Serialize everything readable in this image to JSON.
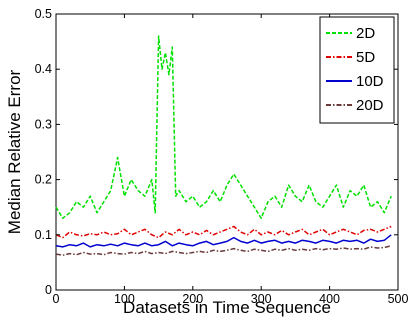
{
  "chart_data": {
    "type": "line",
    "xlabel": "Datasets in Time Sequence",
    "ylabel": "Median Relative Error",
    "xlim": [
      0,
      500
    ],
    "ylim": [
      0,
      0.5
    ],
    "xticks": [
      0,
      100,
      200,
      300,
      400,
      500
    ],
    "xtick_labels": [
      "0",
      "100",
      "200",
      "300",
      "400",
      "500"
    ],
    "yticks": [
      0,
      0.1,
      0.2,
      0.3,
      0.4,
      0.5
    ],
    "ytick_labels": [
      "0",
      "0.1",
      "0.2",
      "0.3",
      "0.4",
      "0.5"
    ],
    "grid": false,
    "legend_position": "top-right",
    "series": [
      {
        "name": "2D",
        "color": "#00e000",
        "dash": "dashed",
        "x": [
          0,
          10,
          20,
          30,
          40,
          50,
          60,
          70,
          80,
          90,
          100,
          110,
          120,
          130,
          140,
          145,
          150,
          155,
          160,
          165,
          170,
          175,
          180,
          190,
          200,
          210,
          220,
          230,
          240,
          250,
          260,
          270,
          280,
          290,
          300,
          310,
          320,
          330,
          340,
          350,
          360,
          370,
          380,
          390,
          400,
          410,
          420,
          430,
          440,
          450,
          460,
          470,
          480,
          490
        ],
        "y": [
          0.15,
          0.13,
          0.14,
          0.16,
          0.15,
          0.17,
          0.14,
          0.16,
          0.18,
          0.24,
          0.17,
          0.2,
          0.18,
          0.17,
          0.2,
          0.14,
          0.46,
          0.4,
          0.43,
          0.39,
          0.44,
          0.17,
          0.18,
          0.16,
          0.17,
          0.15,
          0.16,
          0.18,
          0.16,
          0.19,
          0.21,
          0.19,
          0.17,
          0.15,
          0.13,
          0.16,
          0.17,
          0.15,
          0.19,
          0.17,
          0.16,
          0.19,
          0.16,
          0.15,
          0.17,
          0.19,
          0.15,
          0.18,
          0.17,
          0.19,
          0.15,
          0.16,
          0.14,
          0.17
        ]
      },
      {
        "name": "5D",
        "color": "#e00000",
        "dash": "dashdot",
        "x": [
          0,
          10,
          20,
          30,
          40,
          50,
          60,
          70,
          80,
          90,
          100,
          110,
          120,
          130,
          140,
          150,
          160,
          170,
          180,
          190,
          200,
          210,
          220,
          230,
          240,
          250,
          260,
          270,
          280,
          290,
          300,
          310,
          320,
          330,
          340,
          350,
          360,
          370,
          380,
          390,
          400,
          410,
          420,
          430,
          440,
          450,
          460,
          470,
          480,
          490
        ],
        "y": [
          0.1,
          0.095,
          0.105,
          0.1,
          0.098,
          0.102,
          0.1,
          0.105,
          0.1,
          0.102,
          0.11,
          0.1,
          0.105,
          0.11,
          0.1,
          0.095,
          0.105,
          0.1,
          0.11,
          0.1,
          0.105,
          0.1,
          0.108,
          0.1,
          0.105,
          0.11,
          0.115,
          0.105,
          0.1,
          0.11,
          0.1,
          0.105,
          0.1,
          0.108,
          0.1,
          0.105,
          0.11,
          0.1,
          0.105,
          0.11,
          0.1,
          0.105,
          0.11,
          0.105,
          0.1,
          0.108,
          0.11,
          0.105,
          0.11,
          0.115
        ]
      },
      {
        "name": "10D",
        "color": "#0000d0",
        "dash": "solid",
        "x": [
          0,
          10,
          20,
          30,
          40,
          50,
          60,
          70,
          80,
          90,
          100,
          110,
          120,
          130,
          140,
          150,
          160,
          170,
          180,
          190,
          200,
          210,
          220,
          230,
          240,
          250,
          260,
          270,
          280,
          290,
          300,
          310,
          320,
          330,
          340,
          350,
          360,
          370,
          380,
          390,
          400,
          410,
          420,
          430,
          440,
          450,
          460,
          470,
          480,
          490
        ],
        "y": [
          0.08,
          0.078,
          0.082,
          0.08,
          0.085,
          0.078,
          0.082,
          0.08,
          0.083,
          0.08,
          0.085,
          0.082,
          0.08,
          0.085,
          0.08,
          0.082,
          0.088,
          0.08,
          0.085,
          0.082,
          0.08,
          0.085,
          0.088,
          0.082,
          0.085,
          0.088,
          0.095,
          0.088,
          0.085,
          0.09,
          0.085,
          0.088,
          0.09,
          0.085,
          0.088,
          0.085,
          0.09,
          0.088,
          0.085,
          0.09,
          0.088,
          0.085,
          0.09,
          0.088,
          0.09,
          0.085,
          0.092,
          0.088,
          0.09,
          0.1
        ]
      },
      {
        "name": "20D",
        "color": "#6b3a3a",
        "dash": "dashdot",
        "x": [
          0,
          10,
          20,
          30,
          40,
          50,
          60,
          70,
          80,
          90,
          100,
          110,
          120,
          130,
          140,
          150,
          160,
          170,
          180,
          190,
          200,
          210,
          220,
          230,
          240,
          250,
          260,
          270,
          280,
          290,
          300,
          310,
          320,
          330,
          340,
          350,
          360,
          370,
          380,
          390,
          400,
          410,
          420,
          430,
          440,
          450,
          460,
          470,
          480,
          490
        ],
        "y": [
          0.065,
          0.063,
          0.066,
          0.064,
          0.068,
          0.065,
          0.066,
          0.064,
          0.068,
          0.066,
          0.065,
          0.068,
          0.066,
          0.07,
          0.066,
          0.068,
          0.066,
          0.07,
          0.068,
          0.066,
          0.068,
          0.07,
          0.068,
          0.072,
          0.07,
          0.072,
          0.075,
          0.072,
          0.07,
          0.074,
          0.072,
          0.07,
          0.074,
          0.072,
          0.075,
          0.072,
          0.074,
          0.072,
          0.075,
          0.073,
          0.075,
          0.074,
          0.076,
          0.074,
          0.075,
          0.074,
          0.078,
          0.076,
          0.077,
          0.08
        ]
      }
    ]
  }
}
